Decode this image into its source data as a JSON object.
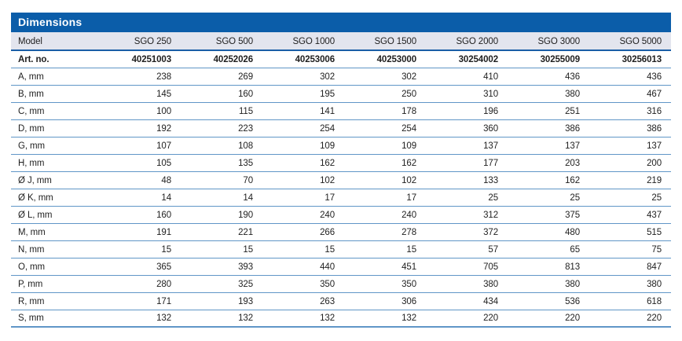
{
  "title_bar": {
    "label": "Dimensions"
  },
  "table": {
    "columns": [
      "Model",
      "SGO 250",
      "SGO 500",
      "SGO 1000",
      "SGO 1500",
      "SGO 2000",
      "SGO 3000",
      "SGO 5000"
    ],
    "rows": [
      {
        "label": "Art. no.",
        "bold": true,
        "values": [
          "40251003",
          "40252026",
          "40253006",
          "40253000",
          "30254002",
          "30255009",
          "30256013"
        ]
      },
      {
        "label": "A, mm",
        "bold": false,
        "values": [
          "238",
          "269",
          "302",
          "302",
          "410",
          "436",
          "436"
        ]
      },
      {
        "label": "B, mm",
        "bold": false,
        "values": [
          "145",
          "160",
          "195",
          "250",
          "310",
          "380",
          "467"
        ]
      },
      {
        "label": "C, mm",
        "bold": false,
        "values": [
          "100",
          "115",
          "141",
          "178",
          "196",
          "251",
          "316"
        ]
      },
      {
        "label": "D, mm",
        "bold": false,
        "values": [
          "192",
          "223",
          "254",
          "254",
          "360",
          "386",
          "386"
        ]
      },
      {
        "label": "G, mm",
        "bold": false,
        "values": [
          "107",
          "108",
          "109",
          "109",
          "137",
          "137",
          "137"
        ]
      },
      {
        "label": "H, mm",
        "bold": false,
        "values": [
          "105",
          "135",
          "162",
          "162",
          "177",
          "203",
          "200"
        ]
      },
      {
        "label": "Ø J, mm",
        "bold": false,
        "values": [
          "48",
          "70",
          "102",
          "102",
          "133",
          "162",
          "219"
        ]
      },
      {
        "label": "Ø K, mm",
        "bold": false,
        "values": [
          "14",
          "14",
          "17",
          "17",
          "25",
          "25",
          "25"
        ]
      },
      {
        "label": "Ø L, mm",
        "bold": false,
        "values": [
          "160",
          "190",
          "240",
          "240",
          "312",
          "375",
          "437"
        ]
      },
      {
        "label": "M, mm",
        "bold": false,
        "values": [
          "191",
          "221",
          "266",
          "278",
          "372",
          "480",
          "515"
        ]
      },
      {
        "label": "N, mm",
        "bold": false,
        "values": [
          "15",
          "15",
          "15",
          "15",
          "57",
          "65",
          "75"
        ]
      },
      {
        "label": "O, mm",
        "bold": false,
        "values": [
          "365",
          "393",
          "440",
          "451",
          "705",
          "813",
          "847"
        ]
      },
      {
        "label": "P, mm",
        "bold": false,
        "values": [
          "280",
          "325",
          "350",
          "350",
          "380",
          "380",
          "380"
        ]
      },
      {
        "label": "R, mm",
        "bold": false,
        "values": [
          "171",
          "193",
          "263",
          "306",
          "434",
          "536",
          "618"
        ]
      },
      {
        "label": "S, mm",
        "bold": false,
        "values": [
          "132",
          "132",
          "132",
          "132",
          "220",
          "220",
          "220"
        ]
      }
    ]
  },
  "colors": {
    "title_bar_bg": "#0b5da9",
    "header_row_bg": "#e3e5ee",
    "header_border": "#1a5ea6",
    "row_border": "#6096c7",
    "text": "#1f1f1f",
    "title_text": "#ffffff"
  }
}
